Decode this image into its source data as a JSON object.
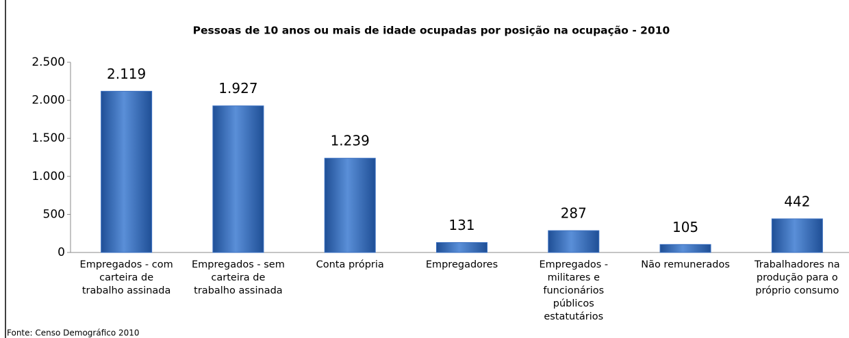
{
  "chart_data": {
    "type": "bar",
    "title": "Pessoas de 10 anos ou mais de idade ocupadas por posição na ocupação - 2010",
    "categories": [
      "Empregados - com carteira de trabalho assinada",
      "Empregados - sem carteira de trabalho assinada",
      "Conta própria",
      "Empregadores",
      "Empregados - militares e funcionários públicos estatutários",
      "Não remunerados",
      "Trabalhadores na produção para o próprio consumo"
    ],
    "values": [
      2119,
      1927,
      1239,
      131,
      287,
      105,
      442
    ],
    "value_labels": [
      "2.119",
      "1.927",
      "1.239",
      "131",
      "287",
      "105",
      "442"
    ],
    "color": "#3a6fc0",
    "ylim": [
      0,
      2500
    ],
    "yticks": [
      0,
      500,
      {
        "value": 1000,
        "label": "1.000"
      },
      {
        "value": 1500,
        "label": "1.500"
      },
      {
        "value": 2000,
        "label": "2.000"
      },
      {
        "value": 2500,
        "label": "2.500"
      }
    ],
    "grid": false,
    "source": "Fonte: Censo Demográfico 2010"
  }
}
